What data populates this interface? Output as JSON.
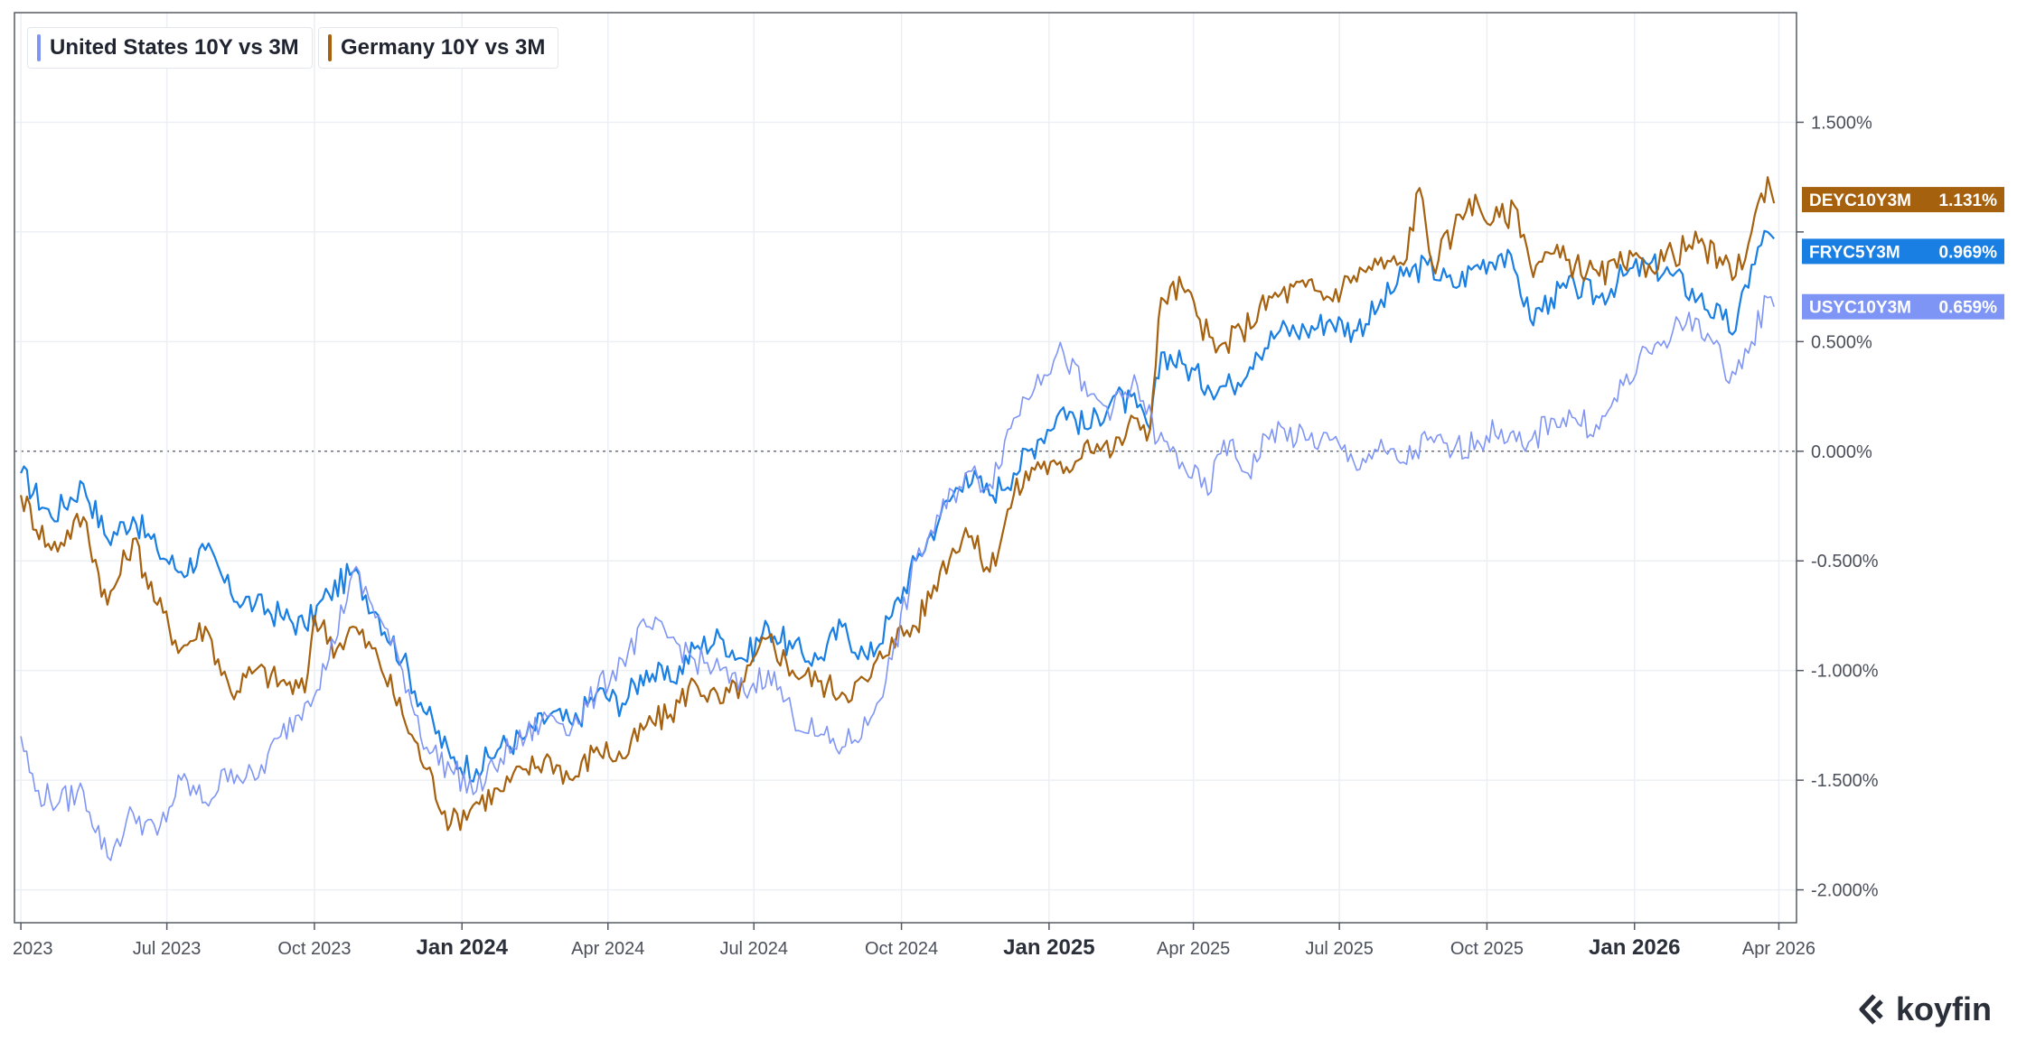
{
  "legend": {
    "us": {
      "label": "United States 10Y vs 3M",
      "color": "#7f95f5"
    },
    "de": {
      "label": "Germany 10Y vs 3M",
      "color": "#a6610f"
    }
  },
  "brand": {
    "name": "koyfin",
    "icon": "koyfin-logo-icon"
  },
  "colors": {
    "us": "#7f95f5",
    "de": "#a6610f",
    "fr": "#1a7fe3",
    "grid": "#eceff3",
    "axis": "#555a64"
  },
  "chart_data": {
    "type": "line",
    "ylim": [
      -2.15,
      2.0
    ],
    "y_ticks": [
      1.5,
      1.0,
      0.5,
      0.0,
      -0.5,
      -1.0,
      -1.5,
      -2.0
    ],
    "y_tick_labels": [
      "1.500%",
      "1.000%",
      "0.500%",
      "0.000%",
      "-0.500%",
      "-1.000%",
      "-1.500%",
      "-2.000%"
    ],
    "y_ticks_hidden": [
      1.0
    ],
    "zero_line": 0.0,
    "grid": true,
    "legend_position": "top-left",
    "x_ticks": [
      {
        "date": "2023-04-01",
        "label": "2023",
        "bold": false
      },
      {
        "date": "2023-07-01",
        "label": "Jul 2023",
        "bold": false
      },
      {
        "date": "2023-10-01",
        "label": "Oct 2023",
        "bold": false
      },
      {
        "date": "2024-01-01",
        "label": "Jan 2024",
        "bold": true
      },
      {
        "date": "2024-04-01",
        "label": "Apr 2024",
        "bold": false
      },
      {
        "date": "2024-07-01",
        "label": "Jul 2024",
        "bold": false
      },
      {
        "date": "2024-10-01",
        "label": "Oct 2024",
        "bold": false
      },
      {
        "date": "2025-01-01",
        "label": "Jan 2025",
        "bold": true
      },
      {
        "date": "2025-04-01",
        "label": "Apr 2025",
        "bold": false
      },
      {
        "date": "2025-07-01",
        "label": "Jul 2025",
        "bold": false
      },
      {
        "date": "2025-10-01",
        "label": "Oct 2025",
        "bold": false
      },
      {
        "date": "2026-01-01",
        "label": "Jan 2026",
        "bold": true
      },
      {
        "date": "2026-04-01",
        "label": "Apr 2026",
        "bold": false
      }
    ],
    "series": [
      {
        "key": "fr",
        "ticker": "FRYC5Y3M",
        "last_value": "0.969%",
        "last": 0.969,
        "color": "#1a7fe3",
        "points": [
          [
            "2023-04-01",
            -0.1
          ],
          [
            "2023-04-20",
            -0.3
          ],
          [
            "2023-05-10",
            -0.15
          ],
          [
            "2023-05-25",
            -0.4
          ],
          [
            "2023-06-10",
            -0.3
          ],
          [
            "2023-06-25",
            -0.45
          ],
          [
            "2023-07-10",
            -0.55
          ],
          [
            "2023-07-25",
            -0.45
          ],
          [
            "2023-08-10",
            -0.65
          ],
          [
            "2023-08-25",
            -0.7
          ],
          [
            "2023-09-10",
            -0.75
          ],
          [
            "2023-09-25",
            -0.8
          ],
          [
            "2023-10-10",
            -0.65
          ],
          [
            "2023-10-25",
            -0.55
          ],
          [
            "2023-11-10",
            -0.75
          ],
          [
            "2023-11-25",
            -0.95
          ],
          [
            "2023-12-10",
            -1.2
          ],
          [
            "2023-12-25",
            -1.4
          ],
          [
            "2024-01-10",
            -1.45
          ],
          [
            "2024-01-25",
            -1.35
          ],
          [
            "2024-02-10",
            -1.3
          ],
          [
            "2024-02-25",
            -1.2
          ],
          [
            "2024-03-10",
            -1.25
          ],
          [
            "2024-03-25",
            -1.1
          ],
          [
            "2024-04-10",
            -1.15
          ],
          [
            "2024-04-25",
            -1.0
          ],
          [
            "2024-05-10",
            -1.05
          ],
          [
            "2024-05-25",
            -0.9
          ],
          [
            "2024-06-10",
            -0.85
          ],
          [
            "2024-06-25",
            -0.95
          ],
          [
            "2024-07-10",
            -0.8
          ],
          [
            "2024-07-25",
            -0.9
          ],
          [
            "2024-08-10",
            -0.95
          ],
          [
            "2024-08-25",
            -0.8
          ],
          [
            "2024-09-10",
            -0.95
          ],
          [
            "2024-09-25",
            -0.75
          ],
          [
            "2024-10-10",
            -0.5
          ],
          [
            "2024-10-25",
            -0.3
          ],
          [
            "2024-11-10",
            -0.1
          ],
          [
            "2024-11-25",
            -0.2
          ],
          [
            "2024-12-10",
            -0.1
          ],
          [
            "2024-12-25",
            0.05
          ],
          [
            "2025-01-10",
            0.2
          ],
          [
            "2025-01-25",
            0.1
          ],
          [
            "2025-02-10",
            0.25
          ],
          [
            "2025-02-25",
            0.2
          ],
          [
            "2025-03-05",
            0.1
          ],
          [
            "2025-03-12",
            0.45
          ],
          [
            "2025-03-25",
            0.4
          ],
          [
            "2025-04-10",
            0.3
          ],
          [
            "2025-04-25",
            0.3
          ],
          [
            "2025-05-10",
            0.45
          ],
          [
            "2025-05-25",
            0.55
          ],
          [
            "2025-06-10",
            0.55
          ],
          [
            "2025-06-25",
            0.6
          ],
          [
            "2025-07-10",
            0.55
          ],
          [
            "2025-07-25",
            0.65
          ],
          [
            "2025-08-10",
            0.8
          ],
          [
            "2025-08-25",
            0.85
          ],
          [
            "2025-09-10",
            0.75
          ],
          [
            "2025-09-25",
            0.85
          ],
          [
            "2025-10-10",
            0.9
          ],
          [
            "2025-10-20",
            0.8
          ],
          [
            "2025-10-28",
            0.6
          ],
          [
            "2025-11-10",
            0.7
          ],
          [
            "2025-11-25",
            0.75
          ],
          [
            "2025-12-10",
            0.7
          ],
          [
            "2025-12-25",
            0.8
          ],
          [
            "2026-01-10",
            0.85
          ],
          [
            "2026-01-25",
            0.8
          ],
          [
            "2026-02-10",
            0.7
          ],
          [
            "2026-02-25",
            0.6
          ],
          [
            "2026-03-05",
            0.55
          ],
          [
            "2026-03-15",
            0.85
          ],
          [
            "2026-03-25",
            1.0
          ],
          [
            "2026-03-29",
            0.969
          ]
        ]
      },
      {
        "key": "de",
        "ticker": "DEYC10Y3M",
        "last_value": "1.131%",
        "last": 1.131,
        "color": "#a6610f",
        "points": [
          [
            "2023-04-01",
            -0.2
          ],
          [
            "2023-04-20",
            -0.45
          ],
          [
            "2023-05-10",
            -0.3
          ],
          [
            "2023-05-25",
            -0.7
          ],
          [
            "2023-06-10",
            -0.4
          ],
          [
            "2023-06-25",
            -0.7
          ],
          [
            "2023-07-10",
            -0.9
          ],
          [
            "2023-07-25",
            -0.8
          ],
          [
            "2023-08-10",
            -1.1
          ],
          [
            "2023-08-25",
            -1.0
          ],
          [
            "2023-09-10",
            -1.05
          ],
          [
            "2023-09-25",
            -1.1
          ],
          [
            "2023-10-01",
            -0.75
          ],
          [
            "2023-10-15",
            -0.9
          ],
          [
            "2023-10-25",
            -0.8
          ],
          [
            "2023-11-10",
            -0.95
          ],
          [
            "2023-11-25",
            -1.2
          ],
          [
            "2023-12-10",
            -1.45
          ],
          [
            "2023-12-25",
            -1.7
          ],
          [
            "2024-01-10",
            -1.6
          ],
          [
            "2024-01-25",
            -1.55
          ],
          [
            "2024-02-10",
            -1.45
          ],
          [
            "2024-02-25",
            -1.4
          ],
          [
            "2024-03-10",
            -1.5
          ],
          [
            "2024-03-25",
            -1.35
          ],
          [
            "2024-04-10",
            -1.4
          ],
          [
            "2024-04-25",
            -1.25
          ],
          [
            "2024-05-10",
            -1.2
          ],
          [
            "2024-05-25",
            -1.05
          ],
          [
            "2024-06-10",
            -1.15
          ],
          [
            "2024-06-25",
            -1.05
          ],
          [
            "2024-07-10",
            -0.85
          ],
          [
            "2024-07-25",
            -1.0
          ],
          [
            "2024-08-10",
            -1.05
          ],
          [
            "2024-08-25",
            -1.1
          ],
          [
            "2024-09-10",
            -1.05
          ],
          [
            "2024-09-25",
            -0.85
          ],
          [
            "2024-10-10",
            -0.8
          ],
          [
            "2024-10-25",
            -0.55
          ],
          [
            "2024-11-10",
            -0.35
          ],
          [
            "2024-11-25",
            -0.55
          ],
          [
            "2024-12-10",
            -0.2
          ],
          [
            "2024-12-25",
            -0.05
          ],
          [
            "2025-01-10",
            -0.1
          ],
          [
            "2025-01-25",
            0.05
          ],
          [
            "2025-02-10",
            0.0
          ],
          [
            "2025-02-25",
            0.15
          ],
          [
            "2025-03-05",
            0.1
          ],
          [
            "2025-03-12",
            0.7
          ],
          [
            "2025-03-25",
            0.75
          ],
          [
            "2025-04-05",
            0.6
          ],
          [
            "2025-04-15",
            0.45
          ],
          [
            "2025-05-01",
            0.55
          ],
          [
            "2025-05-20",
            0.7
          ],
          [
            "2025-06-10",
            0.75
          ],
          [
            "2025-06-25",
            0.7
          ],
          [
            "2025-07-10",
            0.8
          ],
          [
            "2025-07-25",
            0.85
          ],
          [
            "2025-08-10",
            0.85
          ],
          [
            "2025-08-20",
            1.2
          ],
          [
            "2025-08-28",
            0.85
          ],
          [
            "2025-09-10",
            1.0
          ],
          [
            "2025-09-20",
            1.15
          ],
          [
            "2025-10-05",
            1.05
          ],
          [
            "2025-10-20",
            1.1
          ],
          [
            "2025-10-28",
            0.85
          ],
          [
            "2025-11-10",
            0.9
          ],
          [
            "2025-11-25",
            0.85
          ],
          [
            "2025-12-10",
            0.8
          ],
          [
            "2025-12-25",
            0.85
          ],
          [
            "2026-01-10",
            0.85
          ],
          [
            "2026-01-25",
            0.9
          ],
          [
            "2026-02-10",
            0.95
          ],
          [
            "2026-02-25",
            0.85
          ],
          [
            "2026-03-05",
            0.8
          ],
          [
            "2026-03-15",
            1.0
          ],
          [
            "2026-03-25",
            1.25
          ],
          [
            "2026-03-29",
            1.131
          ]
        ]
      },
      {
        "key": "us",
        "ticker": "USYC10Y3M",
        "last_value": "0.659%",
        "last": 0.659,
        "color": "#7f95f5",
        "points": [
          [
            "2023-04-01",
            -1.3
          ],
          [
            "2023-04-10",
            -1.55
          ],
          [
            "2023-04-25",
            -1.6
          ],
          [
            "2023-05-10",
            -1.55
          ],
          [
            "2023-05-25",
            -1.85
          ],
          [
            "2023-06-10",
            -1.65
          ],
          [
            "2023-06-25",
            -1.75
          ],
          [
            "2023-07-10",
            -1.5
          ],
          [
            "2023-07-25",
            -1.6
          ],
          [
            "2023-08-10",
            -1.45
          ],
          [
            "2023-08-25",
            -1.5
          ],
          [
            "2023-09-10",
            -1.3
          ],
          [
            "2023-09-25",
            -1.15
          ],
          [
            "2023-10-10",
            -0.95
          ],
          [
            "2023-10-25",
            -0.55
          ],
          [
            "2023-11-10",
            -0.75
          ],
          [
            "2023-11-25",
            -1.0
          ],
          [
            "2023-12-10",
            -1.35
          ],
          [
            "2023-12-25",
            -1.45
          ],
          [
            "2024-01-10",
            -1.55
          ],
          [
            "2024-01-25",
            -1.4
          ],
          [
            "2024-02-10",
            -1.3
          ],
          [
            "2024-02-25",
            -1.2
          ],
          [
            "2024-03-10",
            -1.25
          ],
          [
            "2024-03-25",
            -1.1
          ],
          [
            "2024-04-10",
            -0.95
          ],
          [
            "2024-04-25",
            -0.8
          ],
          [
            "2024-05-10",
            -0.85
          ],
          [
            "2024-05-25",
            -0.95
          ],
          [
            "2024-06-10",
            -1.0
          ],
          [
            "2024-06-25",
            -1.1
          ],
          [
            "2024-07-10",
            -1.0
          ],
          [
            "2024-07-25",
            -1.2
          ],
          [
            "2024-08-10",
            -1.3
          ],
          [
            "2024-08-25",
            -1.35
          ],
          [
            "2024-09-10",
            -1.25
          ],
          [
            "2024-09-25",
            -0.95
          ],
          [
            "2024-10-10",
            -0.5
          ],
          [
            "2024-10-25",
            -0.3
          ],
          [
            "2024-11-10",
            -0.1
          ],
          [
            "2024-11-25",
            -0.15
          ],
          [
            "2024-12-10",
            0.15
          ],
          [
            "2024-12-25",
            0.35
          ],
          [
            "2025-01-10",
            0.45
          ],
          [
            "2025-01-25",
            0.25
          ],
          [
            "2025-02-10",
            0.2
          ],
          [
            "2025-02-25",
            0.3
          ],
          [
            "2025-03-10",
            0.05
          ],
          [
            "2025-03-25",
            -0.05
          ],
          [
            "2025-04-10",
            -0.2
          ],
          [
            "2025-04-20",
            0.05
          ],
          [
            "2025-05-05",
            -0.1
          ],
          [
            "2025-05-20",
            0.1
          ],
          [
            "2025-06-10",
            0.05
          ],
          [
            "2025-06-25",
            0.05
          ],
          [
            "2025-07-10",
            -0.05
          ],
          [
            "2025-07-25",
            0.0
          ],
          [
            "2025-08-10",
            -0.05
          ],
          [
            "2025-08-25",
            0.05
          ],
          [
            "2025-09-10",
            0.0
          ],
          [
            "2025-09-25",
            0.05
          ],
          [
            "2025-10-10",
            0.1
          ],
          [
            "2025-10-25",
            0.0
          ],
          [
            "2025-11-10",
            0.15
          ],
          [
            "2025-11-25",
            0.15
          ],
          [
            "2025-12-10",
            0.1
          ],
          [
            "2025-12-25",
            0.3
          ],
          [
            "2026-01-10",
            0.45
          ],
          [
            "2026-01-25",
            0.55
          ],
          [
            "2026-02-10",
            0.6
          ],
          [
            "2026-02-25",
            0.4
          ],
          [
            "2026-03-05",
            0.35
          ],
          [
            "2026-03-15",
            0.5
          ],
          [
            "2026-03-25",
            0.7
          ],
          [
            "2026-03-29",
            0.659
          ]
        ]
      }
    ]
  }
}
